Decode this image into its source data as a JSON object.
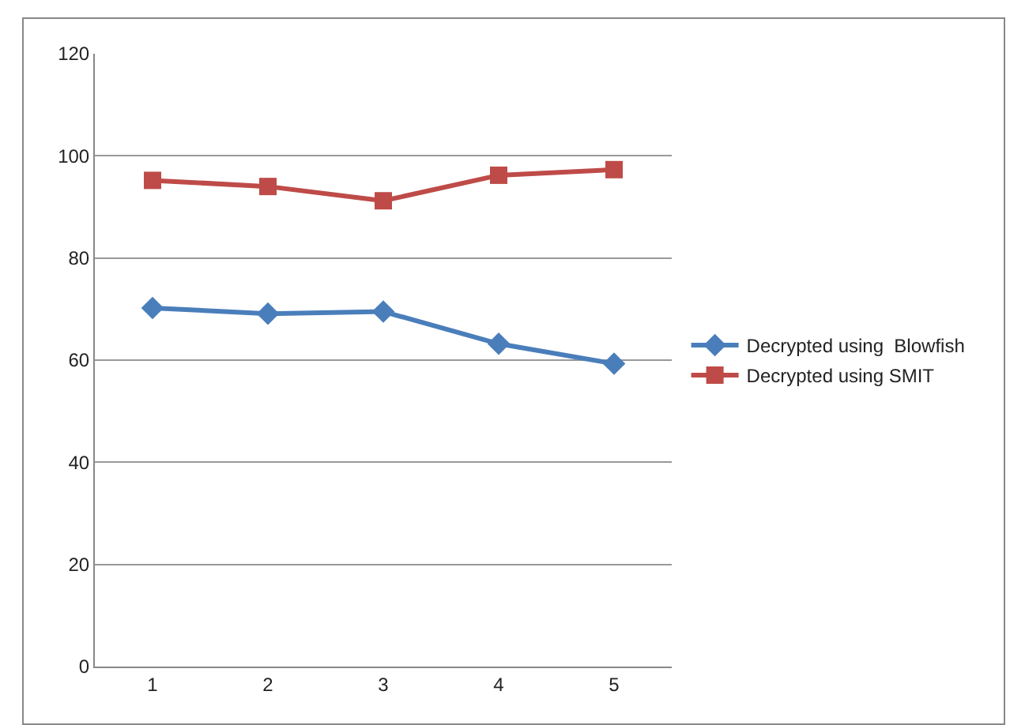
{
  "chart_data": {
    "type": "line",
    "categories": [
      "1",
      "2",
      "3",
      "4",
      "5"
    ],
    "series": [
      {
        "name": "Decrypted using  Blowfish",
        "color": "#4a7ebb",
        "marker": "diamond",
        "values": [
          70.2,
          69.1,
          69.5,
          63.2,
          59.3
        ]
      },
      {
        "name": "Decrypted using SMIT",
        "color": "#be4b48",
        "marker": "square",
        "values": [
          95.2,
          94,
          91.2,
          96.2,
          97.3
        ]
      }
    ],
    "ylim": [
      0,
      120
    ],
    "yticks": [
      0,
      20,
      40,
      60,
      80,
      100,
      120
    ],
    "grid": "y",
    "legend": "right"
  }
}
